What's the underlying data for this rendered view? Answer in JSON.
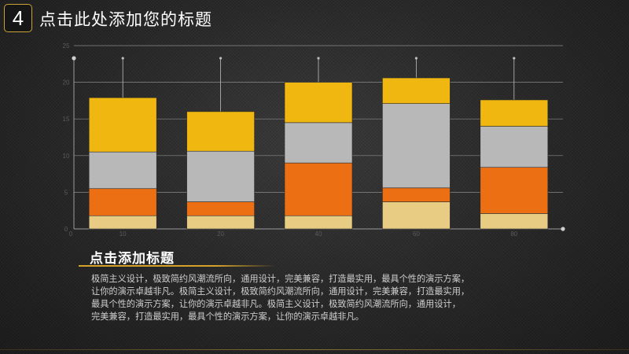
{
  "header": {
    "slide_number": "4",
    "title": "点击此处添加您的标题"
  },
  "content": {
    "subtitle": "点击添加标题",
    "paragraph_lines": [
      "极简主义设计，极致简约风潮流所向，通用设计，完美兼容，打造最实用，最具个性的演示方案，",
      "让你的演示卓越非凡。极简主义设计，极致简约风潮流所向，通用设计，完美兼容，打造最实用，",
      "最具个性的演示方案，让你的演示卓越非凡。极简主义设计，极致简约风潮流所向，通用设计，",
      "完美兼容，打造最实用，最具个性的演示方案，让你的演示卓越非凡。"
    ]
  },
  "colors": {
    "accent_gold": "#d4a22b",
    "series": [
      "#e8cc84",
      "#ec6f14",
      "#b8b8b8",
      "#efb710"
    ]
  },
  "chart_data": {
    "type": "bar",
    "stacked": true,
    "categories": [
      10,
      20,
      40,
      60,
      80
    ],
    "x_ticks": [
      "0",
      "10",
      "20",
      "40",
      "60",
      "80"
    ],
    "y_ticks": [
      "0",
      "5",
      "10",
      "15",
      "20",
      "25"
    ],
    "ylim": [
      0,
      25
    ],
    "grid": true,
    "series": [
      {
        "values": [
          1.8,
          1.8,
          1.8,
          3.7,
          2.1
        ]
      },
      {
        "values": [
          3.7,
          1.9,
          7.2,
          1.9,
          6.3
        ]
      },
      {
        "values": [
          5.0,
          6.9,
          5.5,
          11.5,
          5.6
        ]
      },
      {
        "values": [
          7.4,
          5.4,
          5.5,
          3.5,
          3.6
        ]
      }
    ]
  }
}
